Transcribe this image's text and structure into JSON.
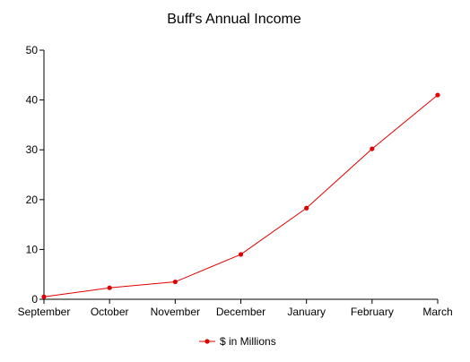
{
  "chart_data": {
    "type": "line",
    "title": "Buff's Annual Income",
    "xlabel": "",
    "ylabel": "",
    "categories": [
      "September",
      "October",
      "November",
      "December",
      "January",
      "February",
      "March"
    ],
    "series": [
      {
        "name": "$ in Millions",
        "values": [
          0.5,
          2.3,
          3.5,
          9.0,
          18.3,
          30.2,
          41.0
        ]
      }
    ],
    "ylim": [
      0,
      50
    ],
    "yticks": [
      0,
      10,
      20,
      30,
      40,
      50
    ],
    "grid": false,
    "legend": "bottom-center",
    "colors": {
      "series": "#e00000",
      "axis": "#000000",
      "text": "#000000"
    }
  }
}
